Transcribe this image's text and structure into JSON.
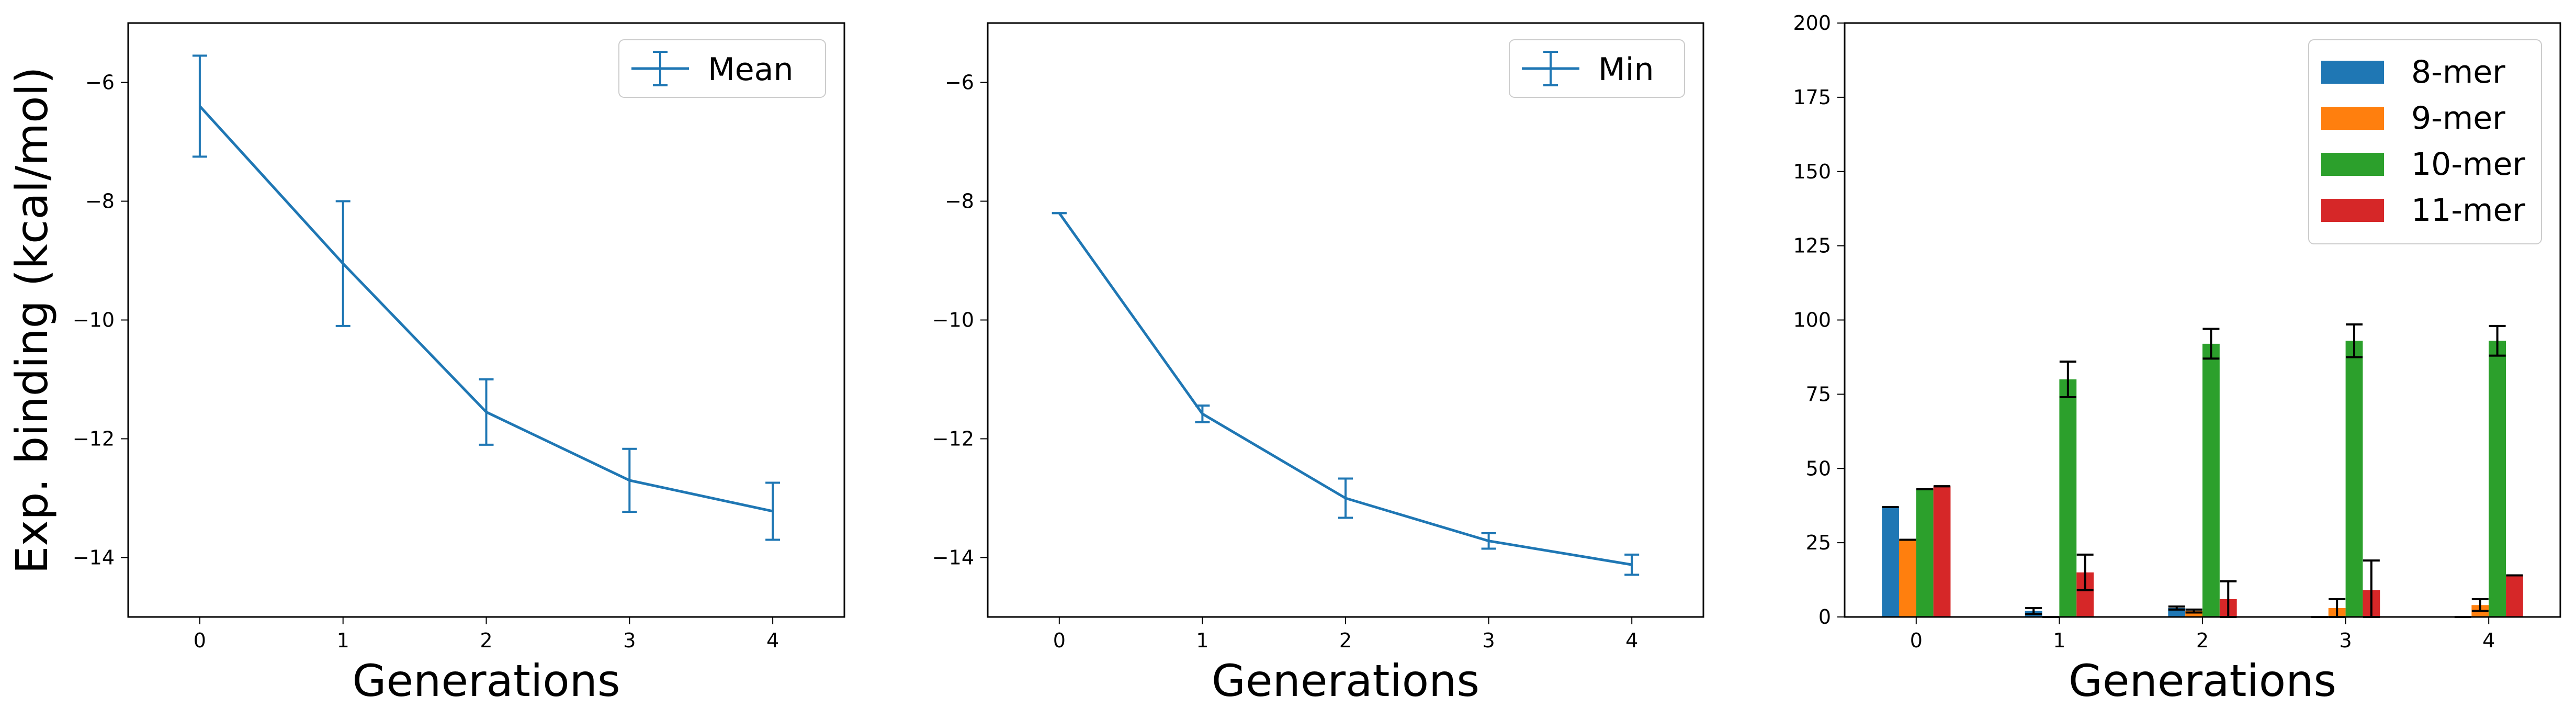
{
  "figure": {
    "ylabel": "Exp. binding (kcal/mol)"
  },
  "chart_data": [
    {
      "type": "line",
      "title": "",
      "xlabel": "Generations",
      "ylabel": "Exp. binding (kcal/mol)",
      "x": [
        0,
        1,
        2,
        3,
        4
      ],
      "xticks": [
        "0",
        "1",
        "2",
        "3",
        "4"
      ],
      "ylim": [
        -15,
        -5
      ],
      "yticks": [
        "−6",
        "−8",
        "−10",
        "−12",
        "−14"
      ],
      "series": [
        {
          "name": "Mean",
          "color": "#1f77b4",
          "values": [
            -6.4,
            -9.05,
            -11.55,
            -12.7,
            -13.22
          ],
          "errors": [
            0.85,
            1.05,
            0.55,
            0.53,
            0.48
          ]
        }
      ],
      "legend": "upper right",
      "grid": false
    },
    {
      "type": "line",
      "title": "",
      "xlabel": "Generations",
      "ylabel": "",
      "x": [
        0,
        1,
        2,
        3,
        4
      ],
      "xticks": [
        "0",
        "1",
        "2",
        "3",
        "4"
      ],
      "ylim": [
        -15,
        -5
      ],
      "yticks": [
        "−6",
        "−8",
        "−10",
        "−12",
        "−14"
      ],
      "series": [
        {
          "name": "Min",
          "color": "#1f77b4",
          "values": [
            -8.2,
            -11.58,
            -13.0,
            -13.72,
            -14.12
          ],
          "errors": [
            0.0,
            0.14,
            0.33,
            0.13,
            0.17
          ]
        }
      ],
      "legend": "upper right",
      "grid": false
    },
    {
      "type": "bar",
      "title": "",
      "xlabel": "Generations",
      "ylabel": "",
      "categories": [
        "0",
        "1",
        "2",
        "3",
        "4"
      ],
      "ylim": [
        0,
        200
      ],
      "yticks": [
        "0",
        "25",
        "50",
        "75",
        "100",
        "125",
        "150",
        "175",
        "200"
      ],
      "series": [
        {
          "name": "8-mer",
          "color": "#1f77b4",
          "values": [
            37,
            2,
            3,
            0,
            0
          ],
          "errors": [
            0,
            1,
            0.5,
            0,
            0
          ]
        },
        {
          "name": "9-mer",
          "color": "#ff7f0e",
          "values": [
            26,
            0,
            2,
            3,
            4
          ],
          "errors": [
            0,
            0,
            0.5,
            3,
            2
          ]
        },
        {
          "name": "10-mer",
          "color": "#2ca02c",
          "values": [
            43,
            80,
            92,
            93,
            93
          ],
          "errors": [
            0,
            6,
            5,
            5.5,
            5
          ]
        },
        {
          "name": "11-mer",
          "color": "#d62728",
          "values": [
            44,
            15,
            6,
            9,
            14
          ],
          "errors": [
            0,
            6,
            6,
            10,
            0
          ]
        }
      ],
      "legend": "upper right",
      "grid": false
    }
  ]
}
